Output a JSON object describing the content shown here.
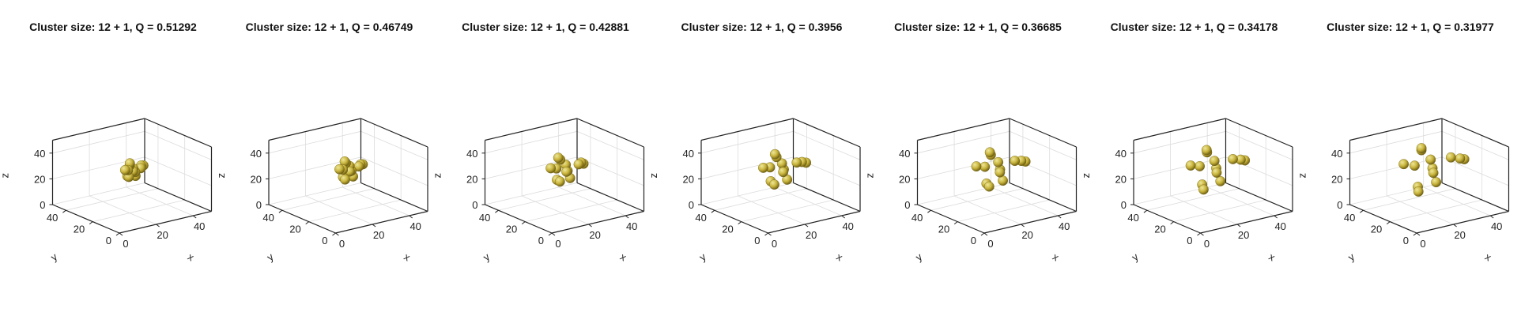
{
  "chart_data": [
    {
      "type": "scatter3d",
      "title": "Cluster size: 12 + 1, Q = 0.51292",
      "xlabel": "x",
      "ylabel": "y",
      "zlabel": "z",
      "xlim": [
        0,
        50
      ],
      "ylim": [
        0,
        50
      ],
      "zlim": [
        0,
        50
      ],
      "xticks": [
        "0",
        "20",
        "40"
      ],
      "yticks": [
        "0",
        "20",
        "40"
      ],
      "zticks": [
        "0",
        "20",
        "40"
      ],
      "points": [
        [
          25,
          24,
          31
        ],
        [
          29,
          24,
          30
        ],
        [
          22,
          26,
          30
        ],
        [
          26,
          28,
          33
        ],
        [
          24,
          21,
          27
        ],
        [
          27,
          27,
          27
        ],
        [
          23,
          24,
          34
        ],
        [
          29,
          22,
          33
        ],
        [
          21,
          23,
          27
        ],
        [
          25,
          28,
          28
        ],
        [
          27,
          21,
          34
        ],
        [
          24,
          26,
          24
        ],
        [
          26,
          24,
          28
        ]
      ]
    },
    {
      "type": "scatter3d",
      "title": "Cluster size: 12 + 1, Q = 0.46749",
      "xlabel": "x",
      "ylabel": "y",
      "zlabel": "z",
      "xlim": [
        0,
        50
      ],
      "ylim": [
        0,
        50
      ],
      "zlim": [
        0,
        50
      ],
      "xticks": [
        "0",
        "20",
        "40"
      ],
      "yticks": [
        "0",
        "20",
        "40"
      ],
      "zticks": [
        "0",
        "20",
        "40"
      ],
      "points": [
        [
          25,
          24,
          33
        ],
        [
          30,
          24,
          31
        ],
        [
          21,
          26,
          31
        ],
        [
          26,
          29,
          34
        ],
        [
          24,
          20,
          27
        ],
        [
          28,
          28,
          26
        ],
        [
          23,
          24,
          36
        ],
        [
          30,
          21,
          34
        ],
        [
          20,
          22,
          27
        ],
        [
          25,
          29,
          28
        ],
        [
          28,
          20,
          35
        ],
        [
          24,
          26,
          22
        ],
        [
          26,
          24,
          29
        ]
      ]
    },
    {
      "type": "scatter3d",
      "title": "Cluster size: 12 + 1, Q = 0.42881",
      "xlabel": "x",
      "ylabel": "y",
      "zlabel": "z",
      "xlim": [
        0,
        50
      ],
      "ylim": [
        0,
        50
      ],
      "zlim": [
        0,
        50
      ],
      "xticks": [
        "0",
        "20",
        "40"
      ],
      "yticks": [
        "0",
        "20",
        "40"
      ],
      "zticks": [
        "0",
        "20",
        "40"
      ],
      "points": [
        [
          25,
          24,
          34
        ],
        [
          32,
          24,
          32
        ],
        [
          19,
          27,
          32
        ],
        [
          26,
          31,
          36
        ],
        [
          23,
          18,
          27
        ],
        [
          29,
          29,
          25
        ],
        [
          22,
          24,
          39
        ],
        [
          31,
          19,
          35
        ],
        [
          18,
          21,
          26
        ],
        [
          25,
          31,
          28
        ],
        [
          29,
          18,
          37
        ],
        [
          24,
          27,
          20
        ],
        [
          26,
          24,
          29
        ]
      ]
    },
    {
      "type": "scatter3d",
      "title": "Cluster size: 12 + 1, Q = 0.3956",
      "xlabel": "x",
      "ylabel": "y",
      "zlabel": "z",
      "xlim": [
        0,
        50
      ],
      "ylim": [
        0,
        50
      ],
      "zlim": [
        0,
        50
      ],
      "xticks": [
        "0",
        "20",
        "40"
      ],
      "yticks": [
        "0",
        "20",
        "40"
      ],
      "zticks": [
        "0",
        "20",
        "40"
      ],
      "points": [
        [
          25,
          24,
          35
        ],
        [
          33,
          24,
          33
        ],
        [
          17,
          27,
          33
        ],
        [
          27,
          32,
          38
        ],
        [
          22,
          16,
          27
        ],
        [
          30,
          30,
          24
        ],
        [
          22,
          24,
          41
        ],
        [
          33,
          17,
          36
        ],
        [
          16,
          20,
          26
        ],
        [
          25,
          33,
          28
        ],
        [
          30,
          16,
          38
        ],
        [
          23,
          27,
          18
        ],
        [
          26,
          24,
          30
        ]
      ]
    },
    {
      "type": "scatter3d",
      "title": "Cluster size: 12 + 1, Q = 0.36685",
      "xlabel": "x",
      "ylabel": "y",
      "zlabel": "z",
      "xlim": [
        0,
        50
      ],
      "ylim": [
        0,
        50
      ],
      "zlim": [
        0,
        50
      ],
      "xticks": [
        "0",
        "20",
        "40"
      ],
      "yticks": [
        "0",
        "20",
        "40"
      ],
      "zticks": [
        "0",
        "20",
        "40"
      ],
      "points": [
        [
          25,
          24,
          36
        ],
        [
          34,
          24,
          34
        ],
        [
          16,
          28,
          34
        ],
        [
          27,
          33,
          39
        ],
        [
          21,
          15,
          27
        ],
        [
          31,
          31,
          23
        ],
        [
          21,
          24,
          43
        ],
        [
          34,
          16,
          37
        ],
        [
          15,
          19,
          25
        ],
        [
          25,
          34,
          28
        ],
        [
          31,
          15,
          39
        ],
        [
          23,
          28,
          16
        ],
        [
          26,
          24,
          30
        ]
      ]
    },
    {
      "type": "scatter3d",
      "title": "Cluster size: 12 + 1, Q = 0.34178",
      "xlabel": "x",
      "ylabel": "y",
      "zlabel": "z",
      "xlim": [
        0,
        50
      ],
      "ylim": [
        0,
        50
      ],
      "zlim": [
        0,
        50
      ],
      "xticks": [
        "0",
        "20",
        "40"
      ],
      "yticks": [
        "0",
        "20",
        "40"
      ],
      "zticks": [
        "0",
        "20",
        "40"
      ],
      "points": [
        [
          25,
          24,
          37
        ],
        [
          35,
          24,
          35
        ],
        [
          15,
          28,
          35
        ],
        [
          28,
          34,
          40
        ],
        [
          21,
          14,
          27
        ],
        [
          32,
          32,
          22
        ],
        [
          21,
          24,
          45
        ],
        [
          35,
          15,
          38
        ],
        [
          14,
          18,
          25
        ],
        [
          25,
          35,
          28
        ],
        [
          32,
          14,
          40
        ],
        [
          22,
          28,
          14
        ],
        [
          26,
          24,
          31
        ]
      ]
    },
    {
      "type": "scatter3d",
      "title": "Cluster size: 12 + 1, Q = 0.31977",
      "xlabel": "x",
      "ylabel": "y",
      "zlabel": "z",
      "xlim": [
        0,
        50
      ],
      "ylim": [
        0,
        50
      ],
      "zlim": [
        0,
        50
      ],
      "xticks": [
        "0",
        "20",
        "40"
      ],
      "yticks": [
        "0",
        "20",
        "40"
      ],
      "zticks": [
        "0",
        "20",
        "40"
      ],
      "points": [
        [
          25,
          24,
          38
        ],
        [
          36,
          24,
          36
        ],
        [
          14,
          29,
          36
        ],
        [
          28,
          35,
          41
        ],
        [
          20,
          13,
          27
        ],
        [
          33,
          33,
          21
        ],
        [
          20,
          24,
          47
        ],
        [
          36,
          14,
          39
        ],
        [
          13,
          17,
          24
        ],
        [
          25,
          36,
          28
        ],
        [
          33,
          13,
          41
        ],
        [
          22,
          29,
          12
        ],
        [
          26,
          24,
          31
        ]
      ]
    }
  ],
  "style": {
    "sphere_light": "#efe79a",
    "sphere_mid": "#c8b43c",
    "sphere_dark": "#6f5f12",
    "axis_color": "#222222",
    "grid_color": "#dcdcdc"
  }
}
